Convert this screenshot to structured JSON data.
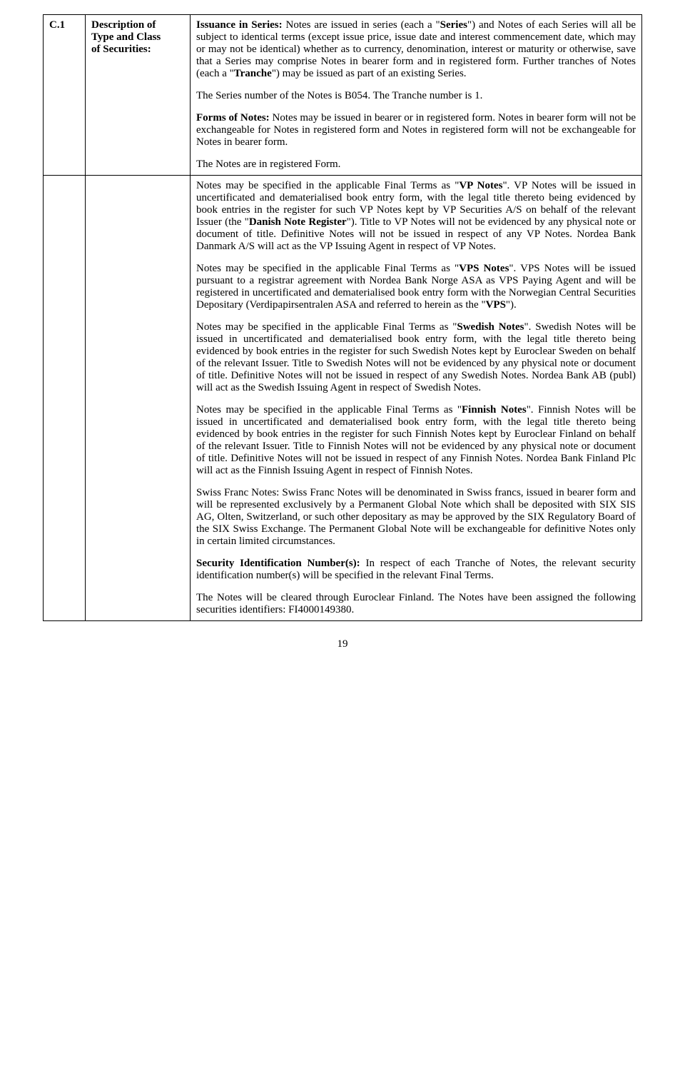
{
  "row1": {
    "id": "C.1",
    "label_l1": "Description of",
    "label_l2": "Type and Class",
    "label_l3": "of Securities:",
    "p1_b": "Issuance in Series:",
    "p1_t1": "  Notes are issued in series (each a \"",
    "p1_b2": "Series",
    "p1_t2": "\") and Notes of each Series will all be subject to identical terms (except issue price, issue date and interest commencement date, which may or may not be identical) whether as to currency, denomination, interest or maturity or otherwise, save that a Series may comprise Notes in bearer form and in registered form.  Further tranches of Notes (each a \"",
    "p1_b3": "Tranche",
    "p1_t3": "\") may be issued as part of an existing Series.",
    "p2": "The Series number of the Notes is B054.  The Tranche number is 1.",
    "p3_b": "Forms of Notes:",
    "p3_t": "  Notes may be issued in bearer or in registered form.  Notes in bearer form will not be exchangeable for Notes in registered form and Notes in registered form will not be exchangeable for Notes in bearer form.",
    "p4": "The Notes are in registered Form."
  },
  "row2": {
    "p1_t1": "Notes may be specified in the applicable Final Terms as \"",
    "p1_b1": "VP Notes",
    "p1_t2": "\".  VP Notes will be issued in uncertificated and dematerialised book entry form, with the legal title thereto being evidenced by book entries in the register for such VP Notes kept by VP Securities A/S on behalf of the relevant Issuer (the \"",
    "p1_b2": "Danish Note Register",
    "p1_t3": "\").  Title to VP Notes will not be evidenced by any physical note or document of title.  Definitive Notes will not be issued in respect of any VP Notes. Nordea Bank Danmark A/S will act as the VP Issuing Agent in respect of VP Notes.",
    "p2_t1": "Notes may be specified in the applicable Final Terms as \"",
    "p2_b1": "VPS Notes",
    "p2_t2": "\".  VPS Notes will be issued pursuant to a registrar agreement with Nordea Bank Norge ASA as VPS Paying Agent and will be registered in uncertificated and dematerialised book entry form with the Norwegian Central Securities Depositary (Verdipapirsentralen ASA and referred to herein as the \"",
    "p2_b2": "VPS",
    "p2_t3": "\").",
    "p3_t1": "Notes may be specified in the applicable Final Terms as \"",
    "p3_b1": "Swedish Notes",
    "p3_t2": "\". Swedish Notes will be issued in uncertificated and dematerialised book entry form, with the legal title thereto being evidenced by book entries in the register for such Swedish Notes kept by Euroclear Sweden on behalf of the relevant Issuer.  Title to Swedish Notes will not be evidenced by any physical note or document of title.  Definitive Notes will not be issued in respect of any Swedish Notes.  Nordea Bank AB (publ) will act as the Swedish Issuing Agent in respect of Swedish Notes.",
    "p4_t1": "Notes may be specified in the applicable Final Terms as \"",
    "p4_b1": "Finnish Notes",
    "p4_t2": "\". Finnish Notes will be issued in uncertificated and dematerialised book entry form, with the legal title thereto being evidenced by book entries in the register for such Finnish Notes kept by Euroclear Finland on behalf of the relevant Issuer.  Title to Finnish Notes will not be evidenced by any physical note or document of title.  Definitive Notes will not be issued in respect of any Finnish Notes.  Nordea Bank Finland Plc will act as the Finnish Issuing Agent in respect of Finnish Notes.",
    "p5": "Swiss Franc Notes: Swiss Franc Notes will be denominated in Swiss francs, issued in bearer form and will be represented exclusively by a Permanent Global Note which shall be deposited with SIX SIS AG, Olten, Switzerland, or such other depositary as may be approved by the SIX Regulatory Board of the SIX Swiss Exchange. The Permanent Global Note will be exchangeable for definitive Notes only in certain limited circumstances.",
    "p6_b": "Security Identification Number(s):",
    "p6_t": "  In respect of each Tranche of Notes, the relevant security identification number(s) will be specified in the relevant Final Terms.",
    "p7": "The Notes will be cleared through Euroclear Finland.  The Notes have been assigned the following securities identifiers: FI4000149380."
  },
  "page_number": "19"
}
